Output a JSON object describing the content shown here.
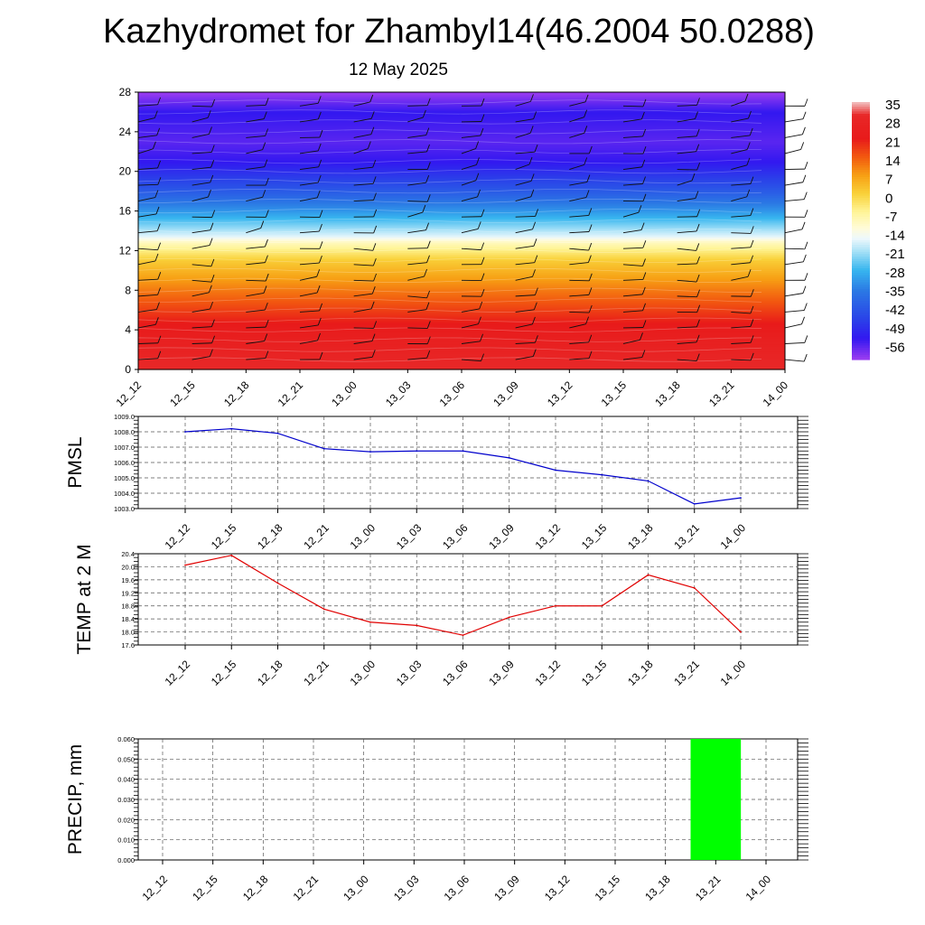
{
  "chart_data": [
    {
      "type": "heatmap",
      "title": "Kazhydromet for Zhambyl14(46.2004 50.0288)",
      "subtitle": "12 May 2025",
      "x_categories": [
        "12_12",
        "12_15",
        "12_18",
        "12_21",
        "13_00",
        "13_03",
        "13_06",
        "13_09",
        "13_12",
        "13_15",
        "13_18",
        "13_21",
        "14_00"
      ],
      "y_ticks": [
        0,
        4,
        8,
        12,
        16,
        20,
        24,
        28
      ],
      "ylim": [
        0,
        28
      ],
      "colorbar": {
        "ticks": [
          "35",
          "28",
          "21",
          "14",
          "7",
          "0",
          "-7",
          "-14",
          "-21",
          "-28",
          "-35",
          "-42",
          "-49",
          "-56"
        ],
        "stops": [
          {
            "v": 38,
            "color": "#f2c4c4"
          },
          {
            "v": 33,
            "color": "#e82828"
          },
          {
            "v": 24,
            "color": "#e81a1a"
          },
          {
            "v": 17,
            "color": "#f25a10"
          },
          {
            "v": 10,
            "color": "#f7a014"
          },
          {
            "v": 3,
            "color": "#f9d23a"
          },
          {
            "v": -4,
            "color": "#fff59a"
          },
          {
            "v": -10,
            "color": "#fffbd8"
          },
          {
            "v": -14,
            "color": "#eef8fc"
          },
          {
            "v": -18,
            "color": "#b4e6f8"
          },
          {
            "v": -26,
            "color": "#37b6ef"
          },
          {
            "v": -34,
            "color": "#2b78e4"
          },
          {
            "v": -44,
            "color": "#2a46e8"
          },
          {
            "v": -52,
            "color": "#3218f0"
          },
          {
            "v": -60,
            "color": "#9c3cf0"
          }
        ]
      },
      "field_profile": [
        {
          "y": 0,
          "v": 33
        },
        {
          "y": 4,
          "v": 26
        },
        {
          "y": 8,
          "v": 14
        },
        {
          "y": 11,
          "v": 4
        },
        {
          "y": 12.8,
          "v": -7
        },
        {
          "y": 13.5,
          "v": -15
        },
        {
          "y": 16,
          "v": -30
        },
        {
          "y": 18.5,
          "v": -42
        },
        {
          "y": 21,
          "v": -52
        },
        {
          "y": 23,
          "v": -55
        },
        {
          "y": 26,
          "v": -52
        },
        {
          "y": 28,
          "v": -60
        }
      ],
      "wind_barbs": true
    },
    {
      "type": "line",
      "ylabel": "PMSL",
      "x": [
        "12_12",
        "12_15",
        "12_18",
        "12_21",
        "13_00",
        "13_03",
        "13_06",
        "13_09",
        "13_12",
        "13_15",
        "13_18",
        "13_21",
        "14_00"
      ],
      "series": [
        {
          "values": [
            1008.0,
            1008.2,
            1007.9,
            1006.9,
            1006.7,
            1006.75,
            1006.75,
            1006.3,
            1005.5,
            1005.2,
            1004.8,
            1003.3,
            1003.7
          ]
        }
      ],
      "ylim": [
        1003.0,
        1009.0
      ],
      "y_ticks": [
        "1003.0",
        "1004.0",
        "1005.0",
        "1006.0",
        "1007.0",
        "1008.0",
        "1009.0"
      ],
      "color": "#0000cc",
      "grid": true
    },
    {
      "type": "line",
      "ylabel": "TEMP at 2 M",
      "x": [
        "12_12",
        "12_15",
        "12_18",
        "12_21",
        "13_00",
        "13_03",
        "13_06",
        "13_09",
        "13_12",
        "13_15",
        "13_18",
        "13_21",
        "14_00"
      ],
      "series": [
        {
          "values": [
            20.05,
            20.35,
            19.5,
            18.7,
            18.3,
            18.2,
            17.9,
            18.45,
            18.8,
            18.8,
            19.75,
            19.35,
            18.0
          ]
        }
      ],
      "ylim": [
        17.6,
        20.4
      ],
      "y_ticks": [
        "17.6",
        "18.0",
        "18.4",
        "18.8",
        "19.2",
        "19.6",
        "20.0",
        "20.4"
      ],
      "color": "#e00000",
      "grid": true
    },
    {
      "type": "bar",
      "ylabel": "PRECIP, mm",
      "categories": [
        "12_12",
        "12_15",
        "12_18",
        "12_21",
        "13_00",
        "13_03",
        "13_06",
        "13_09",
        "13_12",
        "13_15",
        "13_18",
        "13_21",
        "14_00"
      ],
      "values": [
        0,
        0,
        0,
        0,
        0,
        0,
        0,
        0,
        0,
        0,
        0,
        0.06,
        0
      ],
      "ylim": [
        0,
        0.06
      ],
      "y_ticks": [
        "0.000",
        "0.010",
        "0.020",
        "0.030",
        "0.040",
        "0.050",
        "0.060"
      ],
      "color": "#00ff00",
      "grid": true
    }
  ]
}
